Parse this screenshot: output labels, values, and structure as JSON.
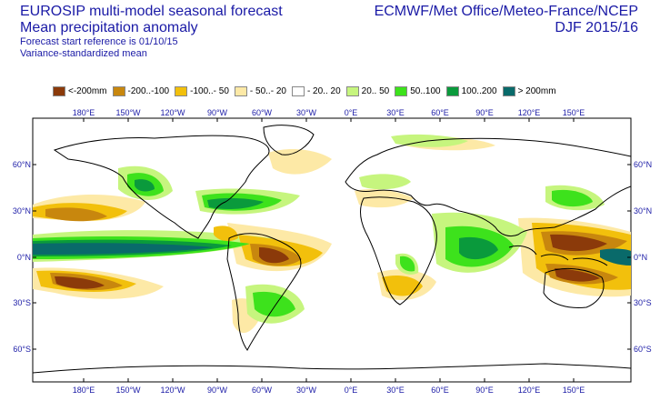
{
  "header": {
    "title_line1": "EUROSIP multi-model seasonal forecast",
    "title_line2": "Mean precipitation anomaly",
    "subtitle_line1": "Forecast start reference is 01/10/15",
    "subtitle_line2": "Variance-standardized mean",
    "agencies": "ECMWF/Met Office/Meteo-France/NCEP",
    "season": "DJF 2015/16"
  },
  "legend": [
    {
      "label": "<-200mm",
      "color": "#8b3a0a"
    },
    {
      "label": "-200..-100",
      "color": "#c8870e"
    },
    {
      "label": "-100..- 50",
      "color": "#f2c00c"
    },
    {
      "label": "- 50..- 20",
      "color": "#fde9a6"
    },
    {
      "label": "- 20.. 20",
      "color": "#ffffff"
    },
    {
      "label": " 20.. 50",
      "color": "#c6f57e"
    },
    {
      "label": " 50..100",
      "color": "#3de21c"
    },
    {
      "label": "100..200",
      "color": "#0a9a3c"
    },
    {
      "label": "> 200mm",
      "color": "#096a6a"
    }
  ],
  "axes": {
    "lon_ticks_top": [
      "180°E",
      "150°W",
      "120°W",
      "90°W",
      "60°W",
      "30°W",
      "0°E",
      "30°E",
      "60°E",
      "90°E",
      "120°E",
      "150°E"
    ],
    "lon_ticks_bottom": [
      "180°E",
      "150°W",
      "120°W",
      "90°W",
      "60°W",
      "30°W",
      "0°E",
      "30°E",
      "60°E",
      "90°E",
      "120°E",
      "150°E"
    ],
    "lat_ticks_left": [
      "60°N",
      "30°N",
      "0°N",
      "30°S",
      "60°S"
    ],
    "lat_ticks_right": [
      "60°N",
      "30°N",
      "0°N",
      "30°S",
      "60°S"
    ]
  },
  "colors": {
    "text": "#1a1aa6",
    "coast": "#000000"
  }
}
